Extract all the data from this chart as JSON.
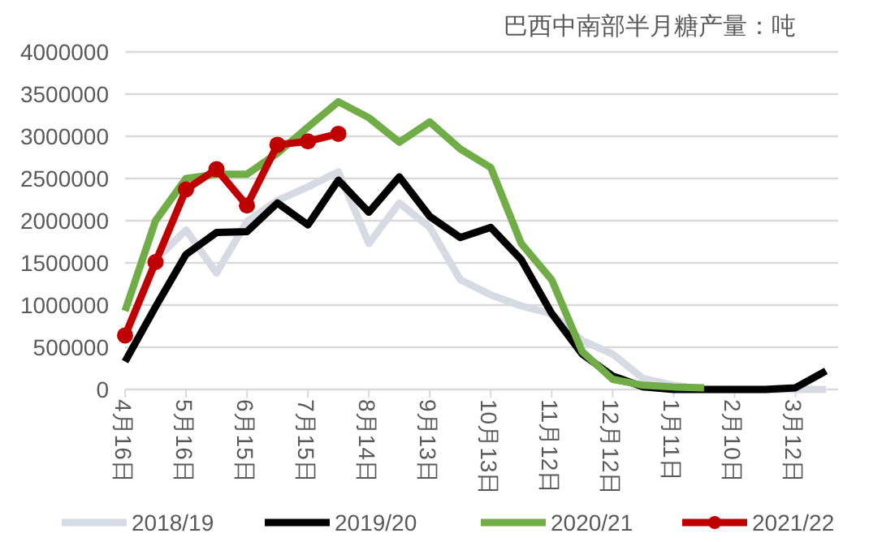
{
  "chart_data": {
    "type": "line",
    "title": "巴西中南部半月糖产量：吨",
    "categories": [
      "4月16日",
      null,
      "5月16日",
      null,
      "6月15日",
      null,
      "7月15日",
      null,
      "8月14日",
      null,
      "9月13日",
      null,
      "10月13日",
      null,
      "11月12日",
      null,
      "12月12日",
      null,
      "1月11日",
      null,
      "2月10日",
      null,
      "3月12日",
      null
    ],
    "series": [
      {
        "name": "2018/19",
        "color": "#d6dae2",
        "marker": "none",
        "values": [
          600000,
          1540000,
          1890000,
          1380000,
          1990000,
          2240000,
          2400000,
          2580000,
          1730000,
          2210000,
          1920000,
          1300000,
          1120000,
          990000,
          900000,
          580000,
          420000,
          130000,
          50000,
          0,
          0,
          0,
          0,
          0
        ]
      },
      {
        "name": "2019/20",
        "color": "#000000",
        "marker": "none",
        "values": [
          330000,
          980000,
          1600000,
          1860000,
          1870000,
          2210000,
          1950000,
          2480000,
          2100000,
          2520000,
          2050000,
          1800000,
          1920000,
          1540000,
          900000,
          420000,
          160000,
          30000,
          0,
          0,
          0,
          0,
          20000,
          220000
        ]
      },
      {
        "name": "2020/21",
        "color": "#70ad47",
        "marker": "none",
        "values": [
          930000,
          2000000,
          2500000,
          2550000,
          2550000,
          2800000,
          3110000,
          3410000,
          3220000,
          2930000,
          3170000,
          2850000,
          2630000,
          1730000,
          1300000,
          450000,
          120000,
          50000,
          30000,
          20000,
          null,
          null,
          null,
          null
        ]
      },
      {
        "name": "2021/22",
        "color": "#c00000",
        "marker": "circle",
        "values": [
          640000,
          1510000,
          2370000,
          2610000,
          2180000,
          2900000,
          2940000,
          3030000,
          null,
          null,
          null,
          null,
          null,
          null,
          null,
          null,
          null,
          null,
          null,
          null,
          null,
          null,
          null,
          null
        ]
      }
    ],
    "ylim": [
      0,
      4000000
    ],
    "yticks": [
      0,
      500000,
      1000000,
      1500000,
      2000000,
      2500000,
      3000000,
      3500000,
      4000000
    ],
    "grid": "y",
    "legend": "bottom"
  }
}
